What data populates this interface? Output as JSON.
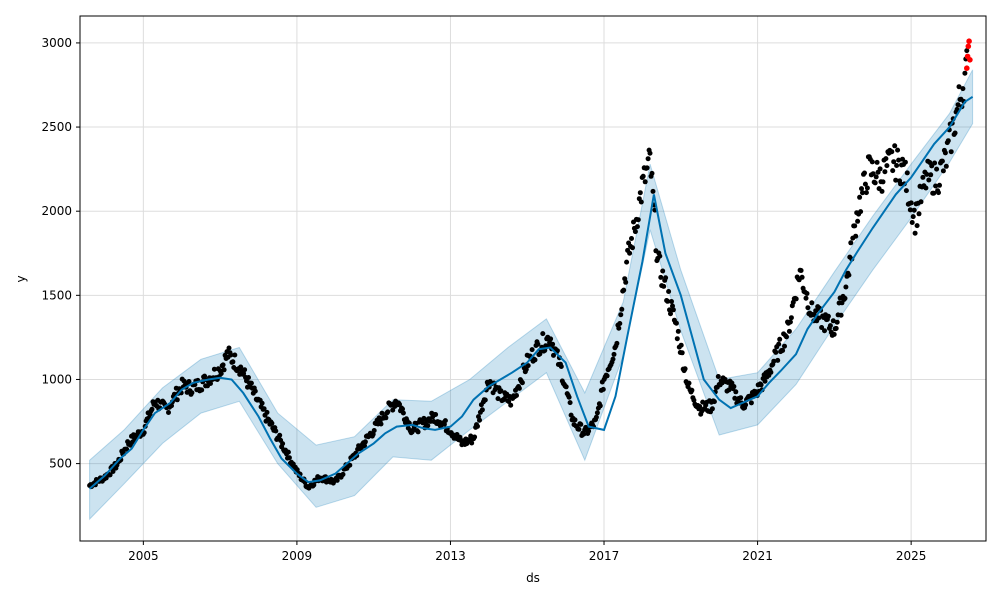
{
  "chart_data": {
    "type": "line",
    "title": "",
    "xlabel": "ds",
    "ylabel": "y",
    "xlim": [
      2003.35,
      2026.95
    ],
    "ylim": [
      40,
      3160
    ],
    "grid": true,
    "legend": "none",
    "x_ticks": [
      2005,
      2009,
      2013,
      2017,
      2021,
      2025
    ],
    "y_ticks": [
      500,
      1000,
      1500,
      2000,
      2500,
      3000
    ],
    "colors": {
      "forecast": "#0072B2",
      "band": "#0072B2",
      "history": "#000000",
      "recent": "#ff0000"
    },
    "series": [
      {
        "role": "forecast",
        "x": [
          2003.6,
          2004.0,
          2004.4,
          2004.7,
          2005.0,
          2005.3,
          2005.7,
          2006.0,
          2006.3,
          2006.7,
          2007.0,
          2007.3,
          2007.6,
          2008.0,
          2008.3,
          2008.6,
          2009.0,
          2009.3,
          2009.6,
          2010.0,
          2010.3,
          2010.6,
          2011.0,
          2011.3,
          2011.6,
          2012.0,
          2012.3,
          2012.6,
          2013.0,
          2013.3,
          2013.6,
          2014.0,
          2014.3,
          2014.6,
          2015.0,
          2015.3,
          2015.6,
          2016.0,
          2016.3,
          2016.6,
          2017.0,
          2017.3,
          2017.6,
          2018.0,
          2018.3,
          2018.6,
          2019.0,
          2019.3,
          2019.6,
          2020.0,
          2020.3,
          2020.6,
          2021.0,
          2021.3,
          2021.6,
          2022.0,
          2022.3,
          2022.6,
          2023.0,
          2023.3,
          2023.6,
          2024.0,
          2024.3,
          2024.6,
          2025.0,
          2025.3,
          2025.6,
          2026.0,
          2026.4,
          2026.6
        ],
        "y": [
          350,
          430,
          530,
          590,
          700,
          800,
          860,
          940,
          980,
          1000,
          1010,
          1000,
          920,
          780,
          650,
          530,
          440,
          390,
          400,
          440,
          500,
          560,
          620,
          680,
          720,
          730,
          710,
          700,
          720,
          780,
          880,
          960,
          1000,
          1040,
          1100,
          1180,
          1190,
          1100,
          900,
          720,
          700,
          900,
          1250,
          1700,
          2100,
          1750,
          1500,
          1250,
          1000,
          880,
          830,
          860,
          900,
          980,
          1050,
          1150,
          1300,
          1400,
          1520,
          1650,
          1760,
          1900,
          2000,
          2100,
          2200,
          2300,
          2400,
          2500,
          2650,
          2680
        ]
      },
      {
        "role": "uncertainty-band",
        "x": [
          2003.6,
          2004.5,
          2005.5,
          2006.5,
          2007.5,
          2008.5,
          2009.5,
          2010.5,
          2011.5,
          2012.5,
          2013.5,
          2014.5,
          2015.5,
          2016.5,
          2017.5,
          2018.2,
          2019.0,
          2020.0,
          2021.0,
          2022.0,
          2023.0,
          2024.0,
          2025.0,
          2026.0,
          2026.6
        ],
        "upper": [
          520,
          700,
          950,
          1120,
          1190,
          800,
          610,
          660,
          880,
          870,
          1000,
          1190,
          1360,
          920,
          1460,
          2280,
          1650,
          1000,
          1040,
          1300,
          1640,
          1970,
          2280,
          2580,
          2840
        ],
        "lower": [
          170,
          380,
          620,
          800,
          870,
          500,
          240,
          310,
          540,
          520,
          700,
          870,
          1040,
          520,
          1140,
          1890,
          1290,
          670,
          730,
          970,
          1320,
          1650,
          1960,
          2290,
          2520
        ]
      },
      {
        "role": "history",
        "x": [
          2003.6,
          2004.0,
          2004.3,
          2004.6,
          2005.0,
          2005.3,
          2005.6,
          2006.0,
          2006.3,
          2006.6,
          2007.0,
          2007.2,
          2007.5,
          2007.8,
          2008.1,
          2008.4,
          2008.7,
          2009.0,
          2009.3,
          2009.6,
          2010.0,
          2010.3,
          2010.6,
          2011.0,
          2011.3,
          2011.6,
          2012.0,
          2012.3,
          2012.6,
          2013.0,
          2013.3,
          2013.6,
          2014.0,
          2014.3,
          2014.6,
          2015.0,
          2015.3,
          2015.6,
          2015.9,
          2016.2,
          2016.5,
          2016.8,
          2017.0,
          2017.3,
          2017.6,
          2017.8,
          2018.0,
          2018.2,
          2018.4,
          2018.6,
          2018.9,
          2019.2,
          2019.5,
          2019.8,
          2020.0,
          2020.3,
          2020.6,
          2020.9,
          2021.2,
          2021.5,
          2021.8,
          2022.1,
          2022.4,
          2022.7,
          2023.0,
          2023.3,
          2023.6,
          2023.9,
          2024.2,
          2024.5,
          2024.8,
          2025.1,
          2025.4,
          2025.7,
          2025.9,
          2026.1,
          2026.3,
          2026.45
        ],
        "y": [
          370,
          420,
          490,
          620,
          700,
          870,
          820,
          960,
          950,
          990,
          1060,
          1150,
          1080,
          950,
          820,
          700,
          580,
          450,
          360,
          420,
          390,
          480,
          580,
          700,
          800,
          880,
          700,
          740,
          780,
          700,
          620,
          650,
          1000,
          900,
          870,
          1100,
          1200,
          1250,
          1050,
          750,
          680,
          750,
          1000,
          1200,
          1700,
          1900,
          2150,
          2300,
          1700,
          1550,
          1300,
          950,
          830,
          840,
          1000,
          950,
          850,
          900,
          1000,
          1150,
          1300,
          1650,
          1400,
          1350,
          1300,
          1550,
          2000,
          2250,
          2200,
          2300,
          2250,
          1950,
          2200,
          2200,
          2300,
          2500,
          2700,
          2850
        ]
      },
      {
        "role": "recent",
        "x": [
          2026.45,
          2026.47,
          2026.49,
          2026.51,
          2026.53
        ],
        "y": [
          2850,
          2920,
          2980,
          3010,
          2900
        ]
      }
    ]
  }
}
